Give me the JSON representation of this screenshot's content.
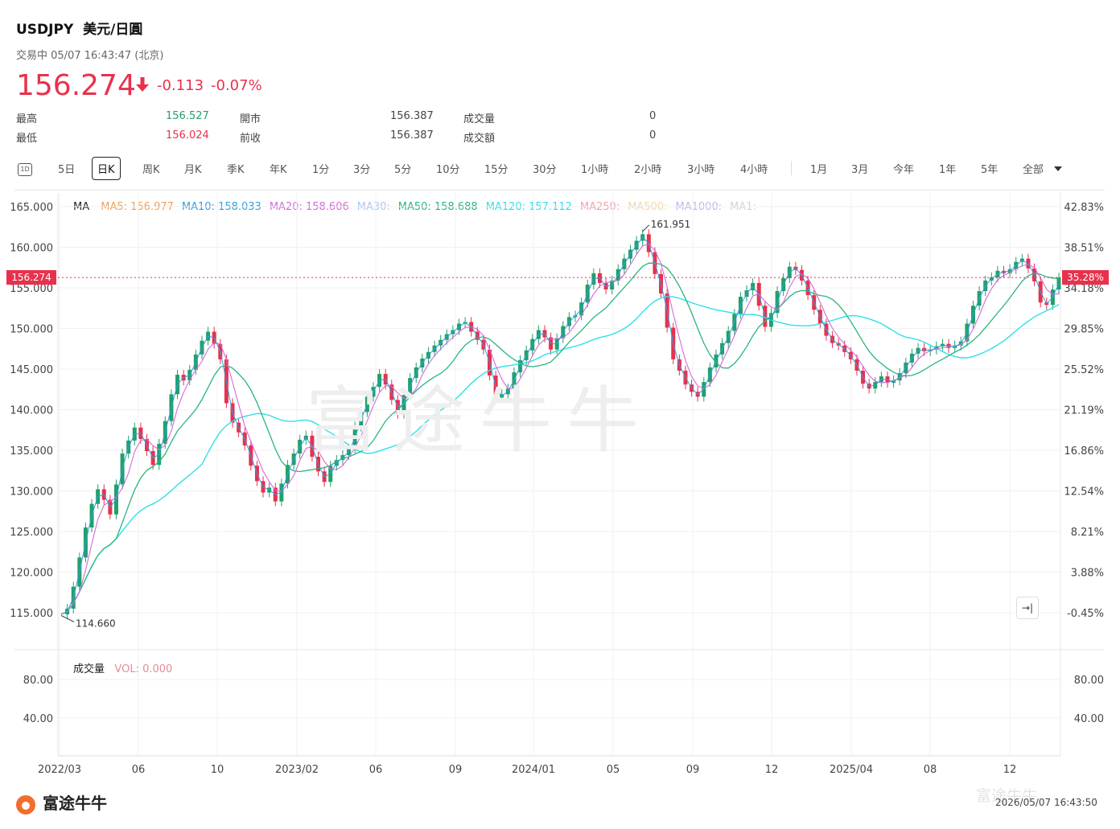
{
  "header": {
    "symbol": "USDJPY",
    "name": "美元/日圓",
    "status": "交易中 05/07 16:43:47 (北京)",
    "price": "156.274",
    "change": "-0.113",
    "change_pct": "-0.07%"
  },
  "quote": {
    "high_label": "最高",
    "high": "156.527",
    "low_label": "最低",
    "low": "156.024",
    "open_label": "開市",
    "open": "156.387",
    "prev_label": "前收",
    "prev": "156.387",
    "vol_label": "成交量",
    "vol": "0",
    "amt_label": "成交額",
    "amt": "0"
  },
  "toolbar": {
    "icon_label": "1D",
    "tabs": [
      "5日",
      "日K",
      "周K",
      "月K",
      "季K",
      "年K",
      "1分",
      "3分",
      "5分",
      "10分",
      "15分",
      "30分",
      "1小時",
      "2小時",
      "3小時",
      "4小時"
    ],
    "ranges": [
      "1月",
      "3月",
      "今年",
      "1年",
      "5年",
      "全部"
    ],
    "active": "日K"
  },
  "legend": {
    "ma": "MA",
    "items": [
      "MA5: 156.977",
      "MA10: 158.033",
      "MA20: 158.606",
      "MA30:",
      "MA50: 158.688",
      "MA120: 157.112",
      "MA250:",
      "MA500:",
      "MA1000:",
      "MA1:"
    ]
  },
  "colors": {
    "up": "#22a06b",
    "down": "#e8314d",
    "ma5": "#f0a050",
    "ma10": "#2f9fe0",
    "ma20": "#d46ad8",
    "ma30": "#a9c8ec",
    "ma50": "#2ab57f",
    "ma120": "#2fe0e8",
    "ma250": "#f2a0a8",
    "ma500": "#f5d6a8",
    "ma1000": "#c9b3ea",
    "ma1": "#d3d3d3"
  },
  "current_price_label": "156.274",
  "current_pct_label": "35.28%",
  "volume": {
    "label": "成交量",
    "value": "VOL: 0.000",
    "ticks": [
      "80.00",
      "40.00"
    ]
  },
  "footer": {
    "logo": "富途牛牛",
    "timestamp": "2026/05/07 16:43:50",
    "watermark": "富途牛牛"
  },
  "chart_data": {
    "type": "line",
    "title": "USDJPY 美元/日圓",
    "y_ticks": [
      "165.000",
      "160.000",
      "155.000",
      "150.000",
      "145.000",
      "140.000",
      "135.000",
      "130.000",
      "125.000",
      "120.000",
      "115.000"
    ],
    "y_pct_ticks": [
      "42.83%",
      "38.51%",
      "34.18%",
      "29.85%",
      "25.52%",
      "21.19%",
      "16.86%",
      "12.54%",
      "8.21%",
      "3.88%",
      "-0.45%"
    ],
    "x_ticks": [
      "2022/03",
      "06",
      "10",
      "2023/02",
      "06",
      "09",
      "2024/01",
      "05",
      "09",
      "12",
      "2025/04",
      "08",
      "12"
    ],
    "ylim": [
      115,
      165
    ],
    "annotations": {
      "max": "161.951",
      "min": "114.660"
    },
    "current_price": 156.274,
    "series": [
      {
        "name": "USDJPY",
        "values": [
          114.8,
          115.5,
          118.2,
          121.8,
          125.5,
          128.4,
          130.2,
          128.9,
          127.1,
          130.8,
          134.6,
          136.2,
          137.8,
          136.4,
          134.9,
          133.2,
          135.8,
          138.6,
          141.9,
          144.3,
          143.6,
          144.9,
          146.8,
          148.5,
          149.6,
          148.1,
          146.2,
          140.8,
          138.4,
          137.2,
          135.6,
          133.1,
          131.2,
          129.8,
          130.4,
          128.7,
          130.9,
          133.2,
          134.6,
          136.3,
          136.8,
          134.2,
          132.4,
          131.1,
          133.1,
          133.8,
          134.4,
          135.2,
          137.9,
          139.7,
          141.6,
          142.8,
          144.4,
          143.1,
          141.2,
          139.5,
          141.8,
          143.9,
          145.2,
          146.3,
          147.1,
          147.9,
          148.6,
          149.3,
          149.8,
          150.6,
          150.8,
          149.6,
          148.6,
          147.4,
          144.2,
          141.5,
          141.9,
          142.6,
          144.6,
          146.1,
          147.3,
          148.7,
          149.8,
          148.9,
          147.4,
          148.8,
          150.3,
          151.4,
          151.6,
          153.2,
          155.4,
          156.8,
          155.6,
          154.8,
          155.9,
          157.3,
          158.6,
          159.7,
          160.8,
          161.6,
          159.4,
          156.7,
          154.3,
          150.1,
          146.2,
          144.8,
          143.1,
          142.2,
          141.6,
          143.4,
          145.2,
          146.8,
          148.2,
          149.7,
          151.8,
          153.9,
          154.7,
          155.6,
          152.8,
          150.2,
          151.9,
          154.6,
          156.2,
          157.6,
          157.2,
          155.9,
          154.1,
          152.3,
          150.6,
          149.1,
          148.2,
          147.9,
          147.1,
          146.2,
          144.8,
          143.2,
          142.6,
          143.4,
          144.1,
          143.3,
          143.6,
          144.5,
          145.8,
          146.9,
          147.6,
          147.2,
          147.4,
          147.8,
          148.1,
          147.6,
          147.9,
          148.4,
          150.6,
          152.8,
          154.6,
          155.9,
          156.3,
          157.1,
          156.8,
          157.3,
          158.2,
          158.6,
          157.4,
          155.8,
          153.2,
          152.9,
          154.8,
          156.274
        ]
      }
    ]
  }
}
